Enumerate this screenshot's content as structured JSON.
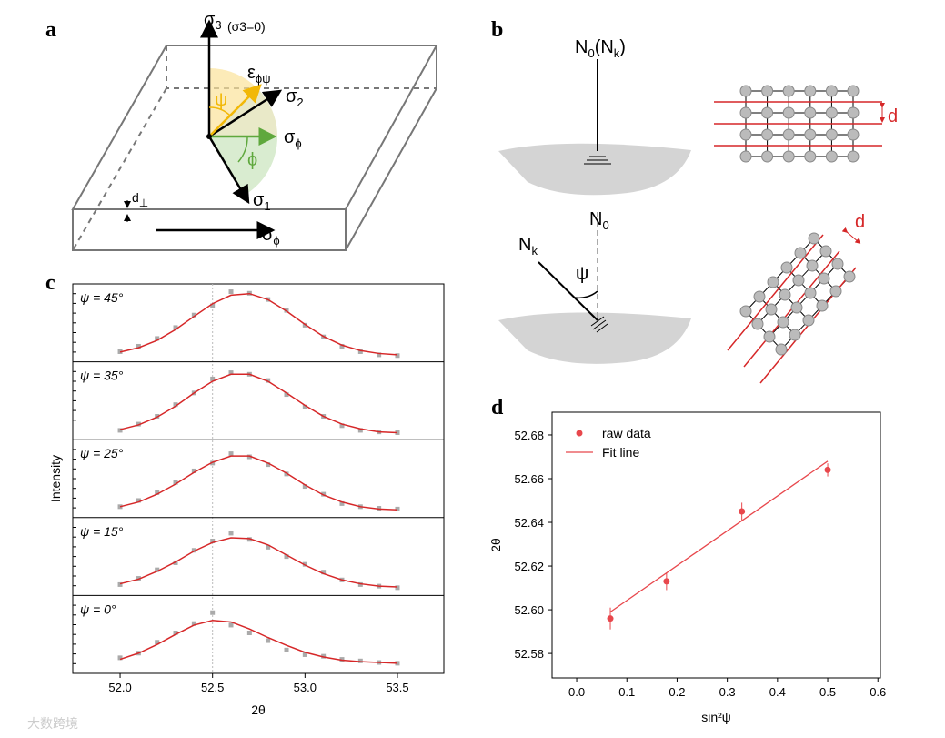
{
  "panel_labels": [
    "a",
    "b",
    "c",
    "d"
  ],
  "diagram_a": {
    "sigma3": {
      "base": "σ",
      "sub": "3"
    },
    "sigma3_note": "(σ3=0)",
    "epsilon": {
      "base": "ε",
      "sub": "ϕψ"
    },
    "sigma2": {
      "base": "σ",
      "sub": "2"
    },
    "sigma_phi": {
      "base": "σ",
      "sub": "ϕ"
    },
    "psi": "ψ",
    "phi": "ϕ",
    "sigma1": {
      "base": "σ",
      "sub": "1"
    },
    "d_perp": {
      "base": "d",
      "sub": "⊥"
    },
    "sigma_phi_front": {
      "base": "σ",
      "sub": "ϕ"
    }
  },
  "diagram_b": {
    "top_normal": {
      "base": "N",
      "sub": "0",
      "rest": "(N",
      "sub2": "k",
      "end": ")"
    },
    "top_d": "d",
    "n0": {
      "base": "N",
      "sub": "0"
    },
    "nk": {
      "base": "N",
      "sub": "k"
    },
    "psi": "ψ",
    "bottom_d": "d"
  },
  "watermark": "大数跨境",
  "chart_data": [
    {
      "type": "stacked-line",
      "x_label": "2θ",
      "y_label": "Intensity",
      "xlim": [
        51.744,
        53.751
      ],
      "xticks": [
        {
          "value": 52.0,
          "label": "52.0"
        },
        52.5,
        {
          "value": 53.0,
          "label": "53.0"
        },
        53.5
      ],
      "ylim": [
        0,
        1
      ],
      "x": [
        52.0,
        52.1,
        52.2,
        52.3,
        52.4,
        52.5,
        52.6,
        52.7,
        52.8,
        52.9,
        53.0,
        53.1,
        53.2,
        53.3,
        53.4,
        53.5
      ],
      "panels": [
        {
          "name": "ψ = 45°",
          "raw": {
            "color": "#aaaaaa",
            "values": [
              0.13,
              0.2,
              0.3,
              0.44,
              0.6,
              0.72,
              0.9,
              0.88,
              0.8,
              0.66,
              0.47,
              0.32,
              0.2,
              0.13,
              0.09,
              0.08
            ]
          },
          "fit": {
            "color": "#d62728",
            "values": [
              0.125,
              0.181,
              0.275,
              0.414,
              0.583,
              0.746,
              0.855,
              0.875,
              0.798,
              0.651,
              0.48,
              0.326,
              0.214,
              0.144,
              0.107,
              0.09
            ]
          }
        },
        {
          "name": "ψ = 35°",
          "raw": {
            "color": "#aaaaaa",
            "values": [
              0.12,
              0.2,
              0.3,
              0.45,
              0.6,
              0.78,
              0.86,
              0.84,
              0.76,
              0.58,
              0.42,
              0.3,
              0.18,
              0.12,
              0.1,
              0.09
            ]
          },
          "fit": {
            "color": "#d62728",
            "values": [
              0.13,
              0.19,
              0.29,
              0.43,
              0.6,
              0.75,
              0.84,
              0.84,
              0.75,
              0.6,
              0.44,
              0.3,
              0.2,
              0.14,
              0.1,
              0.09
            ]
          }
        },
        {
          "name": "ψ = 25°",
          "raw": {
            "color": "#aaaaaa",
            "values": [
              0.14,
              0.22,
              0.32,
              0.45,
              0.6,
              0.7,
              0.82,
              0.78,
              0.68,
              0.56,
              0.4,
              0.3,
              0.18,
              0.14,
              0.12,
              0.11
            ]
          },
          "fit": {
            "color": "#d62728",
            "values": [
              0.14,
              0.2,
              0.3,
              0.43,
              0.58,
              0.71,
              0.79,
              0.79,
              0.7,
              0.57,
              0.42,
              0.29,
              0.2,
              0.14,
              0.11,
              0.1
            ]
          }
        },
        {
          "name": "ψ = 15°",
          "raw": {
            "color": "#aaaaaa",
            "values": [
              0.14,
              0.22,
              0.33,
              0.42,
              0.58,
              0.7,
              0.8,
              0.72,
              0.62,
              0.5,
              0.4,
              0.3,
              0.2,
              0.14,
              0.12,
              0.1
            ]
          },
          "fit": {
            "color": "#d62728",
            "values": [
              0.15,
              0.21,
              0.31,
              0.43,
              0.57,
              0.68,
              0.74,
              0.73,
              0.65,
              0.52,
              0.39,
              0.28,
              0.2,
              0.15,
              0.12,
              0.11
            ]
          }
        },
        {
          "name": "ψ = 0°",
          "raw": {
            "color": "#aaaaaa",
            "values": [
              0.2,
              0.26,
              0.4,
              0.52,
              0.64,
              0.78,
              0.62,
              0.52,
              0.42,
              0.3,
              0.24,
              0.22,
              0.18,
              0.16,
              0.14,
              0.13
            ]
          },
          "fit": {
            "color": "#d62728",
            "values": [
              0.18,
              0.26,
              0.37,
              0.5,
              0.62,
              0.68,
              0.66,
              0.57,
              0.46,
              0.36,
              0.27,
              0.21,
              0.17,
              0.15,
              0.14,
              0.13
            ]
          }
        }
      ]
    },
    {
      "type": "scatter-fit",
      "x_label": "sin²ψ",
      "y_label": "2θ",
      "legend": "upper left",
      "xlim": [
        -0.049,
        0.605
      ],
      "xticks": [
        {
          "value": 0,
          "label": "0.0"
        },
        0.1,
        0.2,
        0.3,
        0.4,
        0.5,
        0.6
      ],
      "ylim": [
        52.5688,
        52.6904
      ],
      "yticks": [
        {
          "value": 52.58,
          "label": "52.58"
        },
        {
          "value": 52.6,
          "label": "52.60"
        },
        {
          "value": 52.62,
          "label": "52.62"
        },
        {
          "value": 52.64,
          "label": "52.64"
        },
        {
          "value": 52.66,
          "label": "52.66"
        },
        {
          "value": 52.68,
          "label": "52.68"
        }
      ],
      "series": [
        {
          "name": "raw data",
          "color": "#e8474c",
          "x": [
            0.067,
            0.179,
            0.329,
            0.5
          ],
          "values": [
            52.596,
            52.613,
            52.645,
            52.664
          ],
          "errors": [
            0.005,
            0.004,
            0.004,
            0.003
          ]
        },
        {
          "name": "Fit line",
          "color": "#e8474c",
          "x": [
            0.067,
            0.5
          ],
          "values": [
            52.599,
            52.668
          ]
        }
      ]
    }
  ]
}
